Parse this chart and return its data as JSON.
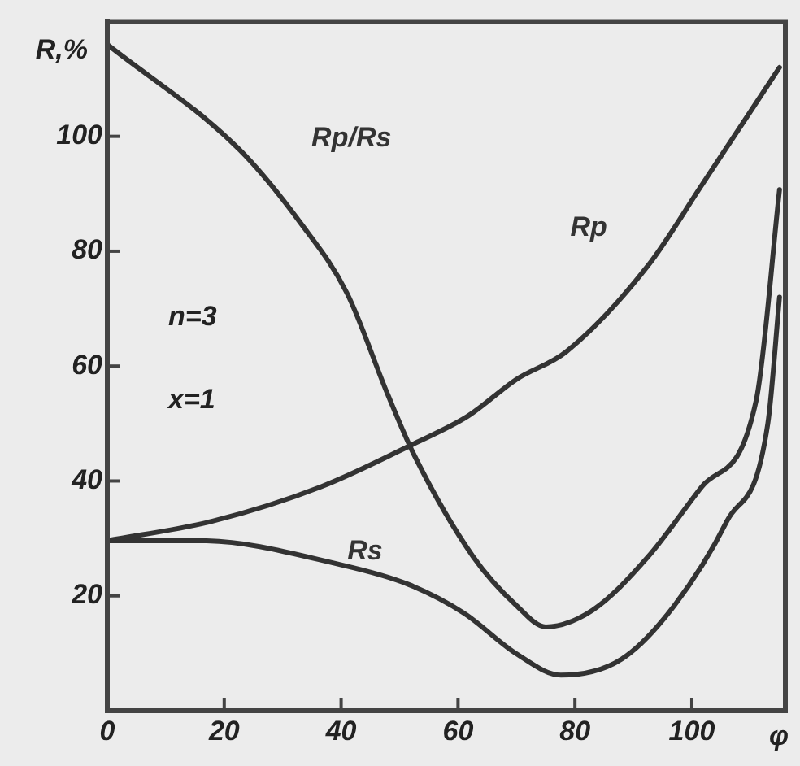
{
  "chart_data": {
    "type": "line",
    "xlabel": "φ",
    "ylabel": "R,%",
    "annotations": [
      "n=3",
      "x=1"
    ],
    "xlim": [
      0,
      116
    ],
    "ylim": [
      0,
      120
    ],
    "xticks": [
      0,
      20,
      40,
      60,
      80,
      100
    ],
    "yticks": [
      20,
      40,
      60,
      80,
      100
    ],
    "grid": false,
    "legend": false,
    "marker": "none",
    "line_style": "solid",
    "series": [
      {
        "name": "Rp/Rs",
        "color": "#333333",
        "x": [
          0,
          22.6,
          33,
          41,
          48,
          52.5,
          62.6,
          70,
          75,
          83,
          92.5,
          101.7,
          111,
          115
        ],
        "values": [
          116,
          97.7,
          85,
          72.7,
          55,
          44.5,
          26.8,
          18.3,
          14.6,
          17.5,
          26.8,
          39,
          54,
          90.7
        ]
      },
      {
        "name": "Rp",
        "color": "#333333",
        "x": [
          0,
          18,
          36.6,
          52.5,
          61.7,
          70,
          78.5,
          92.5,
          101.7,
          115
        ],
        "values": [
          29.6,
          33,
          39,
          46.5,
          51.3,
          57.7,
          62.5,
          77.5,
          91.5,
          112
        ]
      },
      {
        "name": "Rs",
        "color": "#333333",
        "x": [
          0,
          16,
          40,
          51.5,
          61,
          70,
          77.6,
          88,
          97,
          106,
          113,
          115
        ],
        "values": [
          29.6,
          29.6,
          25.4,
          22,
          17,
          9.9,
          6.2,
          9,
          18.3,
          33,
          50,
          72
        ]
      }
    ]
  }
}
